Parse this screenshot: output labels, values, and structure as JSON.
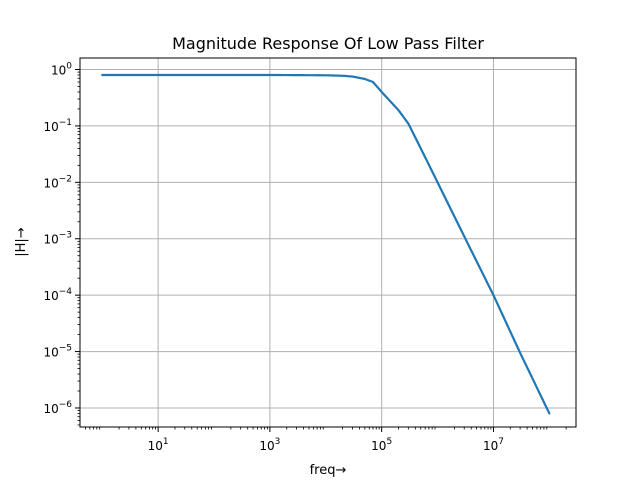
{
  "chart_data": {
    "type": "line",
    "title": "Magnitude Response Of Low Pass Filter",
    "xlabel": "freq→",
    "ylabel": "|H|→",
    "xscale": "log",
    "yscale": "log",
    "xlim": [
      0.4,
      300000000
    ],
    "ylim": [
      4.6e-07,
      1.6
    ],
    "grid": true,
    "x_ticks": [
      {
        "value": 10,
        "label": "10^1"
      },
      {
        "value": 1000,
        "label": "10^3"
      },
      {
        "value": 100000,
        "label": "10^5"
      },
      {
        "value": 10000000,
        "label": "10^7"
      }
    ],
    "y_ticks": [
      {
        "value": 1,
        "label": "10^0"
      },
      {
        "value": 0.1,
        "label": "10^-1"
      },
      {
        "value": 0.01,
        "label": "10^-2"
      },
      {
        "value": 0.001,
        "label": "10^-3"
      },
      {
        "value": 0.0001,
        "label": "10^-4"
      },
      {
        "value": 1e-05,
        "label": "10^-5"
      },
      {
        "value": 1e-06,
        "label": "10^-6"
      }
    ],
    "series": [
      {
        "color": "#1f77b4",
        "x": [
          1,
          10,
          100,
          1000,
          10000,
          20000,
          30000,
          50000,
          70000,
          100000,
          200000,
          300000,
          500000,
          1000000,
          3000000,
          10000000,
          30000000,
          100000000
        ],
        "y": [
          0.8,
          0.8,
          0.8,
          0.8,
          0.79,
          0.775,
          0.75,
          0.68,
          0.6,
          0.4,
          0.19,
          0.11,
          0.04,
          0.01,
          0.0011,
          0.0001,
          9.5e-06,
          8e-07
        ]
      }
    ]
  }
}
